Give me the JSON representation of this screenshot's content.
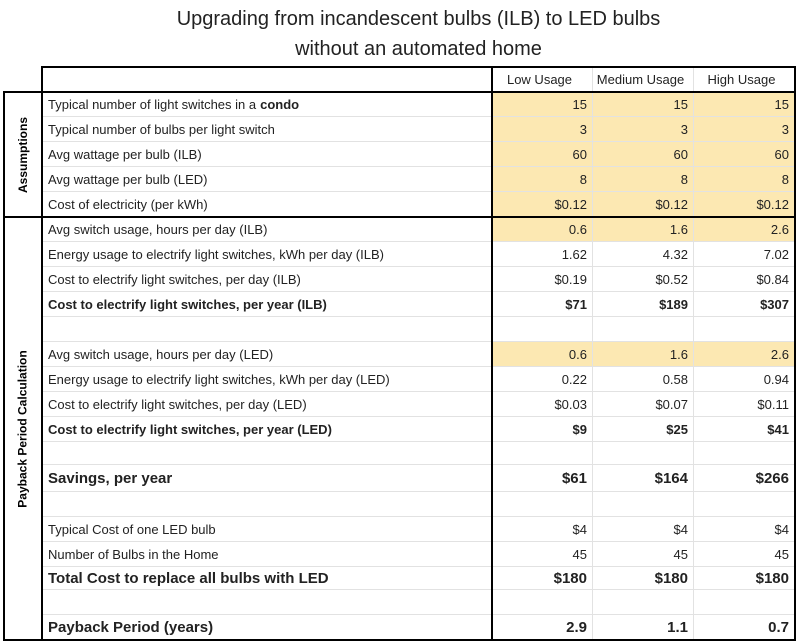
{
  "title_lines": [
    "Upgrading from incandescent bulbs (ILB) to LED bulbs",
    "without an automated home"
  ],
  "columns": [
    "Low Usage",
    "Medium Usage",
    "High Usage"
  ],
  "sections": [
    {
      "label": "Assumptions",
      "rows": [
        {
          "label": "Typical number of light switches in a",
          "label_emphasis": "condo",
          "values": [
            "15",
            "15",
            "15"
          ],
          "highlight": true
        },
        {
          "label": "Typical number of bulbs per light switch",
          "values": [
            "3",
            "3",
            "3"
          ],
          "highlight": true
        },
        {
          "label": "Avg wattage per bulb (ILB)",
          "values": [
            "60",
            "60",
            "60"
          ],
          "highlight": true
        },
        {
          "label": "Avg wattage per bulb (LED)",
          "values": [
            "8",
            "8",
            "8"
          ],
          "highlight": true
        },
        {
          "label": "Cost of electricity (per kWh)",
          "values": [
            "$0.12",
            "$0.12",
            "$0.12"
          ],
          "highlight": true
        }
      ]
    },
    {
      "label": "Payback Period Calculation",
      "rows": [
        {
          "label": "Avg switch usage, hours per day (ILB)",
          "values": [
            "0.6",
            "1.6",
            "2.6"
          ],
          "highlight": true
        },
        {
          "label": "Energy usage to electrify light switches, kWh per day (ILB)",
          "values": [
            "1.62",
            "4.32",
            "7.02"
          ]
        },
        {
          "label": "Cost to electrify light switches, per day (ILB)",
          "values": [
            "$0.19",
            "$0.52",
            "$0.84"
          ]
        },
        {
          "label": "Cost to electrify light switches, per year (ILB)",
          "values": [
            "$71",
            "$189",
            "$307"
          ],
          "bold": true
        },
        null,
        {
          "label": "Avg switch usage, hours per day (LED)",
          "values": [
            "0.6",
            "1.6",
            "2.6"
          ],
          "highlight": true
        },
        {
          "label": "Energy usage to electrify light switches, kWh per day (LED)",
          "values": [
            "0.22",
            "0.58",
            "0.94"
          ]
        },
        {
          "label": "Cost to electrify light switches, per day (LED)",
          "values": [
            "$0.03",
            "$0.07",
            "$0.11"
          ]
        },
        {
          "label": "Cost to electrify light switches, per year (LED)",
          "values": [
            "$9",
            "$25",
            "$41"
          ],
          "bold": true
        },
        null,
        {
          "label": "Savings, per year",
          "values": [
            "$61",
            "$164",
            "$266"
          ],
          "bold": true,
          "large": true
        },
        null,
        {
          "label": "Typical Cost of one LED bulb",
          "values": [
            "$4",
            "$4",
            "$4"
          ]
        },
        {
          "label": "Number of Bulbs in the Home",
          "values": [
            "45",
            "45",
            "45"
          ]
        },
        {
          "label": "Total Cost to replace all bulbs with LED",
          "values": [
            "$180",
            "$180",
            "$180"
          ],
          "bold": true,
          "large": true
        },
        null,
        {
          "label": "Payback Period (years)",
          "values": [
            "2.9",
            "1.1",
            "0.7"
          ],
          "bold": true,
          "large": true
        }
      ]
    }
  ]
}
